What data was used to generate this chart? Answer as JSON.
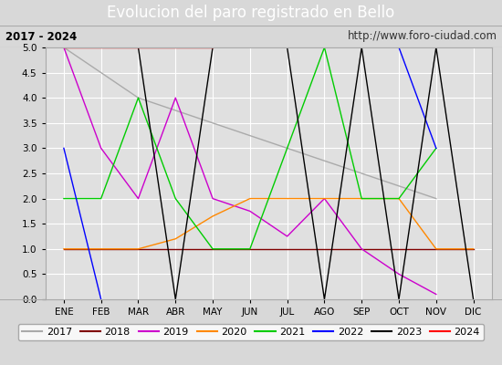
{
  "title": "Evolucion del paro registrado en Bello",
  "subtitle_left": "2017 - 2024",
  "subtitle_right": "http://www.foro-ciudad.com",
  "xlabel_months": [
    "ENE",
    "FEB",
    "MAR",
    "ABR",
    "MAY",
    "JUN",
    "JUL",
    "AGO",
    "SEP",
    "OCT",
    "NOV",
    "DIC"
  ],
  "ylim": [
    0.0,
    5.0
  ],
  "yticks": [
    0.0,
    0.5,
    1.0,
    1.5,
    2.0,
    2.5,
    3.0,
    3.5,
    4.0,
    4.5,
    5.0
  ],
  "series": {
    "2017": {
      "color": "#aaaaaa",
      "data": [
        5,
        4.5,
        4.0,
        3.75,
        3.5,
        3.25,
        3.0,
        2.75,
        2.5,
        2.25,
        2.0,
        null
      ]
    },
    "2018": {
      "color": "#800000",
      "data": [
        1,
        1,
        1,
        1,
        1,
        1,
        1,
        1,
        1,
        1,
        1,
        1
      ]
    },
    "2019": {
      "color": "#cc00cc",
      "data": [
        5,
        3,
        2,
        4,
        2,
        1.75,
        1.25,
        2,
        1.0,
        0.5,
        0.1,
        null
      ]
    },
    "2020": {
      "color": "#ff8800",
      "data": [
        1,
        1,
        1,
        1.2,
        1.65,
        2,
        2,
        2,
        2,
        2,
        1,
        1
      ]
    },
    "2021": {
      "color": "#00cc00",
      "data": [
        2,
        2,
        4,
        2,
        1,
        1,
        3,
        5,
        2,
        2,
        3,
        null
      ]
    },
    "2022": {
      "color": "#0000ff",
      "data": [
        3,
        0,
        null,
        null,
        null,
        null,
        null,
        null,
        null,
        5,
        3,
        null
      ]
    },
    "2023": {
      "color": "#000000",
      "data": [
        5,
        5,
        5,
        0,
        5,
        5,
        5,
        0,
        5,
        0,
        5,
        0
      ]
    },
    "2024": {
      "color": "#ff0000",
      "data": [
        5,
        5,
        5,
        5,
        5,
        null,
        null,
        null,
        null,
        null,
        null,
        null
      ]
    }
  },
  "title_bg_color": "#4472c4",
  "title_font_color": "white",
  "title_fontsize": 12,
  "subtitle_fontsize": 8.5,
  "legend_fontsize": 8,
  "bg_color": "#d8d8d8",
  "plot_bg_color": "#e0e0e0",
  "subtitle_box_color": "#e8e8e8"
}
